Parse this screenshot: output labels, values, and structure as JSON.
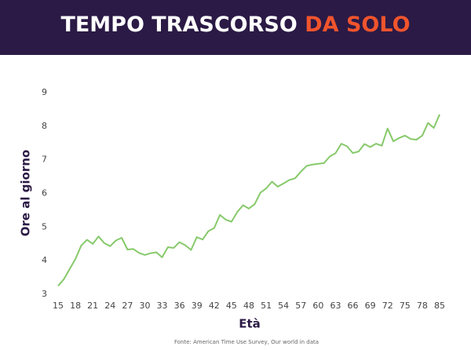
{
  "chart_data": {
    "type": "line",
    "title": [
      "TEMPO TRASCORSO",
      "DA SOLO"
    ],
    "title_colors": [
      "#ffffff",
      "#f0542d"
    ],
    "x_label": "Età",
    "y_label": "Ore al giorno",
    "source": "Fonte: American Time Use Survey, Our world in data",
    "categories": [
      "15",
      null,
      null,
      "18",
      null,
      null,
      "21",
      null,
      null,
      "24",
      null,
      null,
      "27",
      null,
      null,
      "30",
      null,
      null,
      "33",
      null,
      null,
      "36",
      null,
      null,
      "39",
      null,
      null,
      "42",
      null,
      null,
      "45",
      null,
      null,
      "48",
      null,
      null,
      "51",
      null,
      null,
      "54",
      null,
      null,
      "57",
      null,
      null,
      "60",
      null,
      null,
      "63",
      null,
      null,
      "66",
      null,
      null,
      "69",
      null,
      null,
      "72",
      null,
      null,
      "75",
      null,
      null,
      "78",
      null,
      null,
      "85"
    ],
    "series": [
      {
        "name": "Ore al giorno",
        "color": "#86c96a",
        "values": [
          3.25,
          3.45,
          3.75,
          4.05,
          4.45,
          4.62,
          4.5,
          4.72,
          4.52,
          4.43,
          4.6,
          4.68,
          4.33,
          4.35,
          4.23,
          4.17,
          4.22,
          4.25,
          4.1,
          4.4,
          4.38,
          4.55,
          4.46,
          4.32,
          4.7,
          4.63,
          4.88,
          4.97,
          5.36,
          5.22,
          5.16,
          5.45,
          5.65,
          5.55,
          5.68,
          6.02,
          6.15,
          6.35,
          6.2,
          6.3,
          6.4,
          6.45,
          6.65,
          6.82,
          6.86,
          6.88,
          6.9,
          7.1,
          7.2,
          7.48,
          7.4,
          7.2,
          7.25,
          7.47,
          7.38,
          7.48,
          7.42,
          7.93,
          7.55,
          7.65,
          7.72,
          7.62,
          7.6,
          7.72,
          8.1,
          7.95,
          8.35
        ]
      }
    ],
    "ylim": [
      3,
      9
    ],
    "yticks": [
      3,
      4,
      5,
      6,
      7,
      8,
      9
    ],
    "grid": false
  }
}
